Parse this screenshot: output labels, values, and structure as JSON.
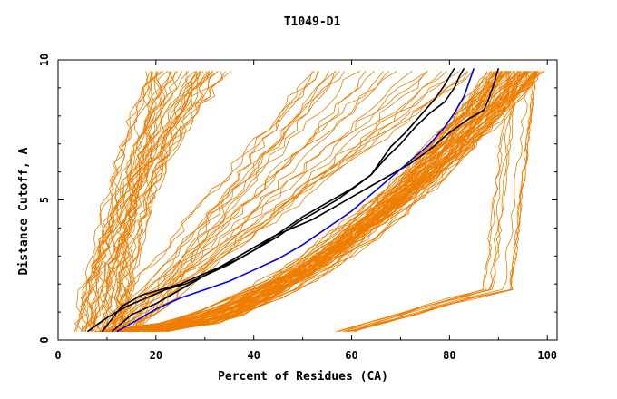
{
  "chart_data": {
    "type": "line",
    "title": "T1049-D1",
    "xlabel": "Percent of Residues (CA)",
    "ylabel": "Distance Cutoff, A",
    "xlim": [
      0,
      102
    ],
    "ylim": [
      0,
      10
    ],
    "xticks": [
      0,
      20,
      40,
      60,
      80,
      100
    ],
    "yticks": [
      0,
      5,
      10
    ],
    "legend": "none",
    "grid": false,
    "series_colors": {
      "group": "#ee7d00",
      "highlight_black": "#000000",
      "highlight_blue": "#0000ee"
    },
    "generated_groups": [
      {
        "name": "steep-left-bundle",
        "color_key": "group",
        "count": 38,
        "start_x": [
          4,
          14
        ],
        "end_x": [
          18,
          36
        ],
        "shape": "steep"
      },
      {
        "name": "mid-spread",
        "color_key": "group",
        "count": 26,
        "start_x": [
          6,
          16
        ],
        "end_x": [
          45,
          85
        ],
        "shape": "linear"
      },
      {
        "name": "lower-right-bundle",
        "color_key": "group",
        "count": 70,
        "start_x": [
          8,
          22
        ],
        "end_x": [
          88,
          99
        ],
        "shape": "convex"
      },
      {
        "name": "right-edge-bundle",
        "color_key": "group",
        "count": 10,
        "start_x": [
          56,
          60
        ],
        "end_x": [
          92,
          98
        ],
        "shape": "hook"
      }
    ],
    "series": [
      {
        "name": "highlight-1",
        "color_key": "highlight_black",
        "x": [
          6,
          10,
          14,
          18,
          22,
          26,
          30,
          35,
          40,
          45,
          50,
          55,
          60,
          64,
          66,
          68,
          71,
          74,
          77,
          79,
          80,
          81
        ],
        "y": [
          0.3,
          0.8,
          1.2,
          1.5,
          1.8,
          2.0,
          2.3,
          2.7,
          3.2,
          3.8,
          4.4,
          4.9,
          5.4,
          5.9,
          6.4,
          6.9,
          7.4,
          8.0,
          8.6,
          9.1,
          9.4,
          9.7
        ]
      },
      {
        "name": "highlight-2",
        "color_key": "highlight_black",
        "x": [
          9,
          13,
          17,
          21,
          25,
          29,
          33,
          37,
          41,
          45,
          49,
          53,
          57,
          61,
          64,
          67,
          70,
          73,
          76,
          79,
          81,
          82,
          83
        ],
        "y": [
          0.3,
          1.2,
          1.6,
          1.8,
          2.0,
          2.3,
          2.6,
          2.9,
          3.3,
          3.7,
          4.2,
          4.6,
          5.0,
          5.5,
          5.9,
          6.5,
          7.0,
          7.6,
          8.1,
          8.5,
          9.0,
          9.4,
          9.7
        ]
      },
      {
        "name": "highlight-3",
        "color_key": "highlight_black",
        "x": [
          11,
          15,
          20,
          24,
          28,
          32,
          36,
          40,
          44,
          48,
          52,
          56,
          60,
          64,
          68,
          72,
          76,
          80,
          84,
          87,
          88,
          89,
          90
        ],
        "y": [
          0.3,
          0.9,
          1.3,
          1.7,
          2.1,
          2.5,
          2.9,
          3.3,
          3.7,
          4.0,
          4.3,
          4.7,
          5.1,
          5.5,
          5.9,
          6.3,
          6.8,
          7.4,
          7.9,
          8.2,
          8.6,
          9.1,
          9.7
        ]
      },
      {
        "name": "highlight-blue",
        "color_key": "highlight_blue",
        "x": [
          12,
          16,
          20,
          25,
          30,
          35,
          40,
          45,
          50,
          55,
          60,
          64,
          68,
          72,
          76,
          79,
          81,
          83,
          84,
          85
        ],
        "y": [
          0.3,
          0.7,
          1.1,
          1.5,
          1.8,
          2.1,
          2.5,
          2.9,
          3.4,
          4.0,
          4.6,
          5.2,
          5.8,
          6.4,
          7.0,
          7.6,
          8.1,
          8.7,
          9.2,
          9.7
        ]
      }
    ]
  }
}
